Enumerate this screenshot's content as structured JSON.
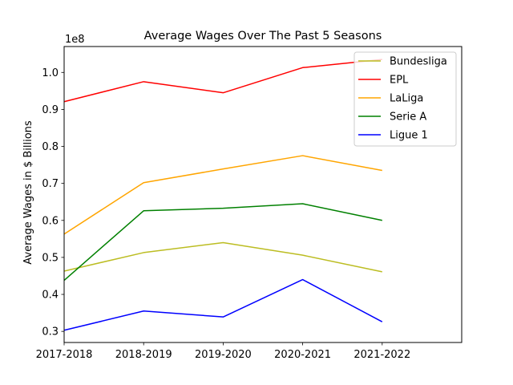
{
  "chart_data": {
    "type": "line",
    "title": "Average Wages Over The Past 5 Seasons",
    "xlabel": "",
    "ylabel": "Average Wages in $ Billions",
    "y_offset_label": "1e8",
    "categories": [
      "2017-2018",
      "2018-2019",
      "2019-2020",
      "2020-2021",
      "2021-2022"
    ],
    "xlim": [
      0,
      5
    ],
    "ylim": [
      0.27,
      1.07
    ],
    "y_ticks": [
      {
        "value": 0.3,
        "label": "0.3"
      },
      {
        "value": 0.4,
        "label": "0.4"
      },
      {
        "value": 0.5,
        "label": "0.5"
      },
      {
        "value": 0.6,
        "label": "0.6"
      },
      {
        "value": 0.7,
        "label": "0.7"
      },
      {
        "value": 0.8,
        "label": "0.8"
      },
      {
        "value": 0.9,
        "label": "0.9"
      },
      {
        "value": 1.0,
        "label": "1.0"
      }
    ],
    "grid": false,
    "legend_position": "top-right",
    "series": [
      {
        "name": "Bundesliga",
        "color": "#bcbd22",
        "values": [
          0.463,
          0.513,
          0.54,
          0.506,
          0.461
        ]
      },
      {
        "name": "EPL",
        "color": "#ff0000",
        "values": [
          0.921,
          0.975,
          0.945,
          1.013,
          1.035
        ]
      },
      {
        "name": "LaLiga",
        "color": "#ffa500",
        "values": [
          0.563,
          0.702,
          0.739,
          0.775,
          0.735
        ]
      },
      {
        "name": "Serie A",
        "color": "#008000",
        "values": [
          0.438,
          0.626,
          0.633,
          0.645,
          0.6
        ]
      },
      {
        "name": "Ligue 1",
        "color": "#0000ff",
        "values": [
          0.303,
          0.355,
          0.339,
          0.44,
          0.326
        ]
      }
    ]
  }
}
